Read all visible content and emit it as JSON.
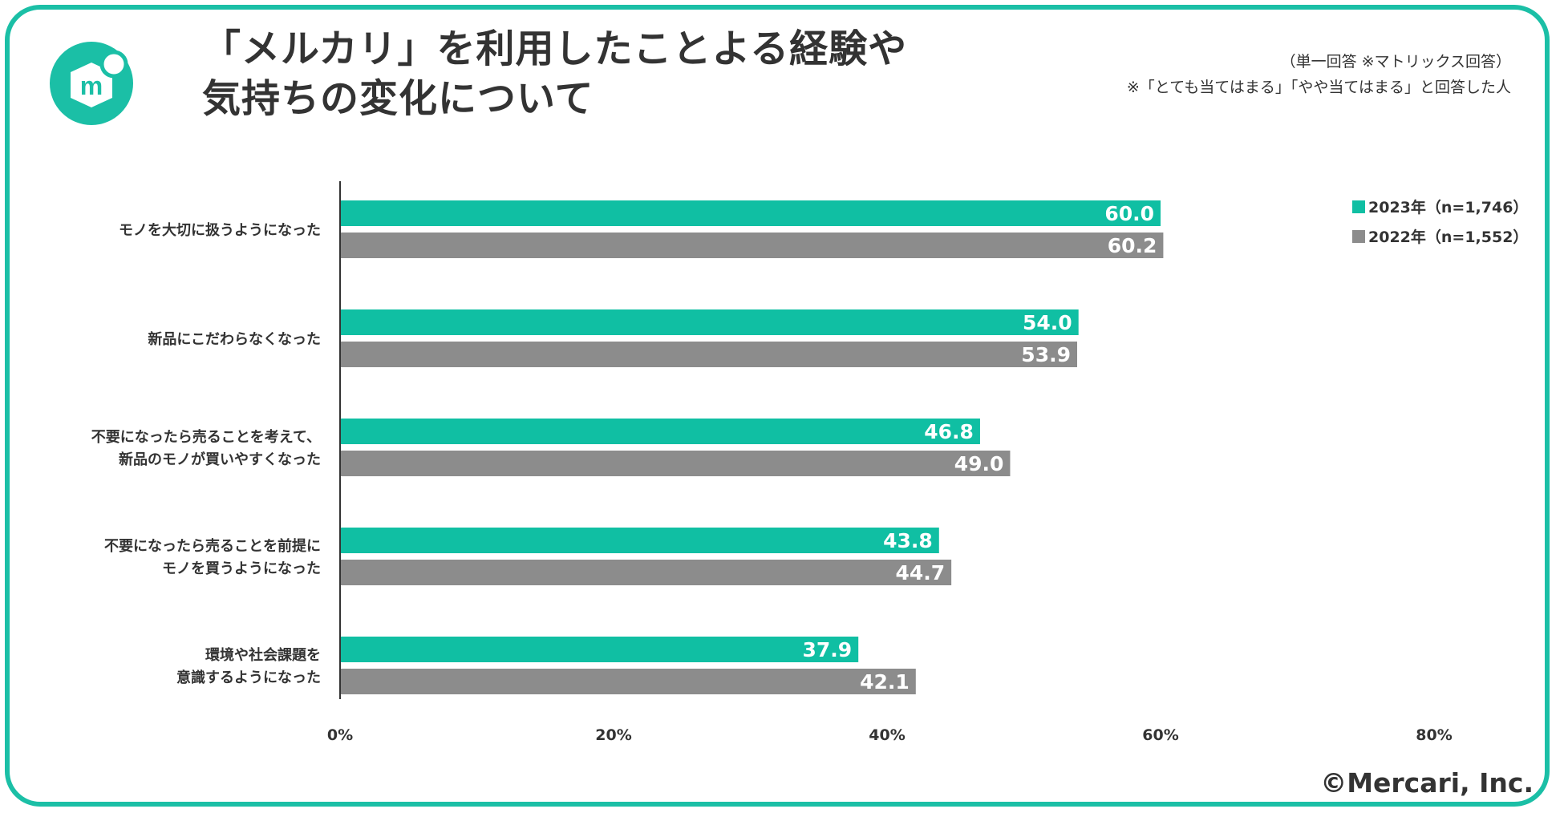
{
  "header": {
    "title_line1": "「メルカリ」を利用したことよる経験や",
    "title_line2": "気持ちの変化について",
    "note_line1": "（単一回答 ※マトリックス回答）",
    "note_line2": "※「とても当てはまる」「やや当てはまる」と回答した人",
    "logo_letter": "m"
  },
  "footer": {
    "copyright": "©Mercari, Inc."
  },
  "colors": {
    "accent": "#1bbfa6",
    "series2023": "#10bfa3",
    "series2022": "#8c8c8c",
    "text": "#333333"
  },
  "chart_data": {
    "type": "bar",
    "orientation": "horizontal",
    "categories": [
      [
        "モノを大切に扱うようになった"
      ],
      [
        "新品にこだわらなくなった"
      ],
      [
        "不要になったら売ることを考えて、",
        "新品のモノが買いやすくなった"
      ],
      [
        "不要になったら売ることを前提に",
        "モノを買うようになった"
      ],
      [
        "環境や社会課題を",
        "意識するようになった"
      ]
    ],
    "series": [
      {
        "name": "2023年（n=1,746）",
        "values": [
          60.0,
          54.0,
          46.8,
          43.8,
          37.9
        ]
      },
      {
        "name": "2022年（n=1,552）",
        "values": [
          60.2,
          53.9,
          49.0,
          44.7,
          42.1
        ]
      }
    ],
    "xlim": [
      0,
      80
    ],
    "xticks": [
      0,
      20,
      40,
      60,
      80
    ],
    "tick_suffix": "%",
    "value_decimals": 1,
    "legend_position": "top-right",
    "grid": false
  }
}
